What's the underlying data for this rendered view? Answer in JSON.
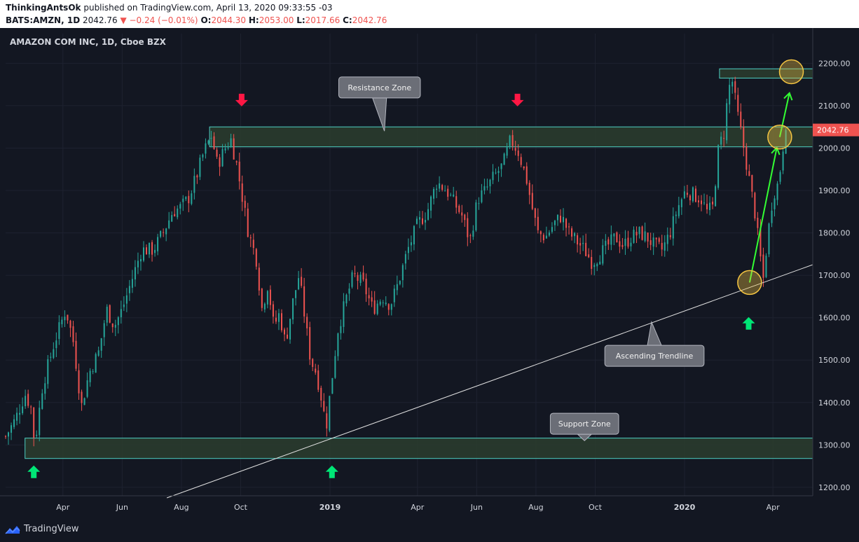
{
  "header": {
    "author": "ThinkingAntsOk",
    "published": "published on TradingView.com, April 13, 2020 09:33:55 -03",
    "symbol": "BATS:AMZN, 1D",
    "price": "2042.76",
    "change": "▼ −0.24 (−0.01%)",
    "o_label": "O:",
    "o_value": "2044.30",
    "h_label": "H:",
    "h_value": "2053.00",
    "l_label": "L:",
    "l_value": "2017.66",
    "c_label": "C:",
    "c_value": "2042.76"
  },
  "footer": {
    "brand": "TradingView"
  },
  "colors": {
    "bg": "#131722",
    "up": "#26a69a",
    "down": "#ef5350",
    "zone_fill": "#2b3d2e",
    "zone_border": "#4dd0c4",
    "arrow_up": "#00e676",
    "arrow_down": "#ff1744",
    "projection": "#33ff33",
    "circle": "#f5c542"
  },
  "chart_data": {
    "type": "candlestick",
    "title": "AMAZON COM INC, 1D, Cboe BZX",
    "ylim": [
      1180,
      2270
    ],
    "yticks": [
      1200,
      1300,
      1400,
      1500,
      1600,
      1700,
      1800,
      1900,
      2000,
      2100,
      2200
    ],
    "ytick_labels": [
      "1200.00",
      "1300.00",
      "1400.00",
      "1500.00",
      "1600.00",
      "1700.00",
      "1800.00",
      "1900.00",
      "2000.00",
      "2100.00",
      "2200.00"
    ],
    "x_range_days": [
      0,
      831
    ],
    "xticks": [
      {
        "day": 59,
        "label": "Apr"
      },
      {
        "day": 120,
        "label": "Jun"
      },
      {
        "day": 181,
        "label": "Aug"
      },
      {
        "day": 242,
        "label": "Oct"
      },
      {
        "day": 334,
        "label": "2019"
      },
      {
        "day": 424,
        "label": "Apr"
      },
      {
        "day": 485,
        "label": "Jun"
      },
      {
        "day": 546,
        "label": "Aug"
      },
      {
        "day": 607,
        "label": "Oct"
      },
      {
        "day": 699,
        "label": "2020"
      },
      {
        "day": 790,
        "label": "Apr"
      }
    ],
    "last_price": 2042.76,
    "last_price_label": "2042.76",
    "price_path": [
      [
        0,
        1320
      ],
      [
        10,
        1360
      ],
      [
        20,
        1420
      ],
      [
        26,
        1390
      ],
      [
        30,
        1300
      ],
      [
        38,
        1440
      ],
      [
        50,
        1540
      ],
      [
        62,
        1620
      ],
      [
        70,
        1540
      ],
      [
        78,
        1390
      ],
      [
        86,
        1470
      ],
      [
        96,
        1520
      ],
      [
        104,
        1620
      ],
      [
        112,
        1580
      ],
      [
        120,
        1620
      ],
      [
        130,
        1690
      ],
      [
        140,
        1760
      ],
      [
        152,
        1760
      ],
      [
        162,
        1800
      ],
      [
        172,
        1850
      ],
      [
        180,
        1860
      ],
      [
        188,
        1880
      ],
      [
        196,
        1930
      ],
      [
        204,
        1990
      ],
      [
        212,
        2030
      ],
      [
        218,
        1960
      ],
      [
        226,
        2000
      ],
      [
        232,
        2020
      ],
      [
        238,
        1960
      ],
      [
        244,
        1880
      ],
      [
        250,
        1800
      ],
      [
        258,
        1740
      ],
      [
        264,
        1620
      ],
      [
        270,
        1680
      ],
      [
        276,
        1580
      ],
      [
        282,
        1610
      ],
      [
        288,
        1540
      ],
      [
        296,
        1640
      ],
      [
        302,
        1700
      ],
      [
        308,
        1600
      ],
      [
        314,
        1500
      ],
      [
        320,
        1470
      ],
      [
        326,
        1400
      ],
      [
        330,
        1340
      ],
      [
        334,
        1420
      ],
      [
        342,
        1570
      ],
      [
        350,
        1640
      ],
      [
        358,
        1700
      ],
      [
        368,
        1680
      ],
      [
        378,
        1620
      ],
      [
        388,
        1650
      ],
      [
        396,
        1630
      ],
      [
        404,
        1680
      ],
      [
        414,
        1760
      ],
      [
        424,
        1820
      ],
      [
        434,
        1850
      ],
      [
        444,
        1920
      ],
      [
        454,
        1900
      ],
      [
        462,
        1870
      ],
      [
        470,
        1840
      ],
      [
        478,
        1780
      ],
      [
        486,
        1880
      ],
      [
        494,
        1900
      ],
      [
        502,
        1930
      ],
      [
        512,
        1960
      ],
      [
        520,
        2020
      ],
      [
        528,
        1990
      ],
      [
        536,
        1930
      ],
      [
        542,
        1860
      ],
      [
        548,
        1800
      ],
      [
        556,
        1790
      ],
      [
        564,
        1820
      ],
      [
        572,
        1840
      ],
      [
        580,
        1800
      ],
      [
        588,
        1780
      ],
      [
        596,
        1760
      ],
      [
        604,
        1730
      ],
      [
        612,
        1750
      ],
      [
        620,
        1770
      ],
      [
        628,
        1790
      ],
      [
        636,
        1770
      ],
      [
        644,
        1790
      ],
      [
        652,
        1800
      ],
      [
        660,
        1790
      ],
      [
        668,
        1770
      ],
      [
        676,
        1760
      ],
      [
        684,
        1800
      ],
      [
        692,
        1860
      ],
      [
        700,
        1900
      ],
      [
        708,
        1890
      ],
      [
        716,
        1880
      ],
      [
        722,
        1850
      ],
      [
        728,
        1860
      ],
      [
        734,
        2000
      ],
      [
        740,
        2040
      ],
      [
        744,
        2140
      ],
      [
        748,
        2160
      ],
      [
        752,
        2100
      ],
      [
        756,
        2050
      ],
      [
        760,
        2000
      ],
      [
        766,
        1920
      ],
      [
        772,
        1840
      ],
      [
        776,
        1760
      ],
      [
        780,
        1690
      ],
      [
        784,
        1780
      ],
      [
        790,
        1890
      ],
      [
        796,
        1920
      ],
      [
        800,
        2000
      ],
      [
        804,
        2042.76
      ]
    ],
    "zones": [
      {
        "name": "Resistance Zone",
        "label": "Resistance Zone",
        "x0": 210,
        "x1": 831,
        "y0": 2003,
        "y1": 2050
      },
      {
        "name": "Support Zone",
        "label": "Support Zone",
        "x0": 20,
        "x1": 831,
        "y0": 1268,
        "y1": 1316
      },
      {
        "name": "Target Zone",
        "x0": 735,
        "x1": 831,
        "y0": 2165,
        "y1": 2187
      }
    ],
    "trendline": {
      "label": "Ascending Trendline",
      "p0": [
        166,
        1175
      ],
      "p1": [
        831,
        1725
      ]
    },
    "callouts": [
      {
        "label": "Resistance Zone",
        "day": 385,
        "price": 2143,
        "tip_day": 390,
        "tip_price": 2040
      },
      {
        "label": "Ascending Trendline",
        "day": 668,
        "price": 1510,
        "tip_day": 665,
        "tip_price": 1590
      },
      {
        "label": "Support Zone",
        "day": 596,
        "price": 1350,
        "tip_day": 596,
        "tip_price": 1310
      }
    ],
    "markers": [
      {
        "type": "down",
        "day": 243,
        "price": 2115
      },
      {
        "type": "down",
        "day": 527,
        "price": 2115
      },
      {
        "type": "up",
        "day": 29,
        "price": 1235
      },
      {
        "type": "up",
        "day": 336,
        "price": 1235
      },
      {
        "type": "up",
        "day": 765,
        "price": 1585
      }
    ],
    "circles": [
      {
        "day": 766,
        "price": 1683
      },
      {
        "day": 797,
        "price": 2026
      },
      {
        "day": 809,
        "price": 2180
      }
    ],
    "projection": [
      [
        766,
        1683
      ],
      [
        794,
        2001
      ],
      [
        797,
        2026
      ],
      [
        807,
        2130
      ]
    ]
  }
}
